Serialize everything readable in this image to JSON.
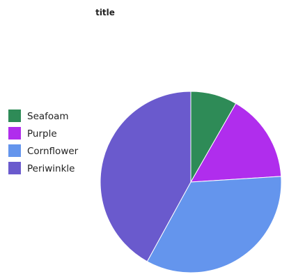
{
  "chart_data": {
    "type": "pie",
    "title": "title",
    "categories": [
      "Seafoam",
      "Purple",
      "Cornflower",
      "Periwinkle"
    ],
    "values": [
      8.3,
      15.7,
      34.0,
      42.0
    ],
    "colors": [
      "#2e8b57",
      "#b02ded",
      "#6495ed",
      "#6a5acd"
    ],
    "legend_position": "left",
    "start_angle_deg": 0,
    "direction": "clockwise"
  }
}
